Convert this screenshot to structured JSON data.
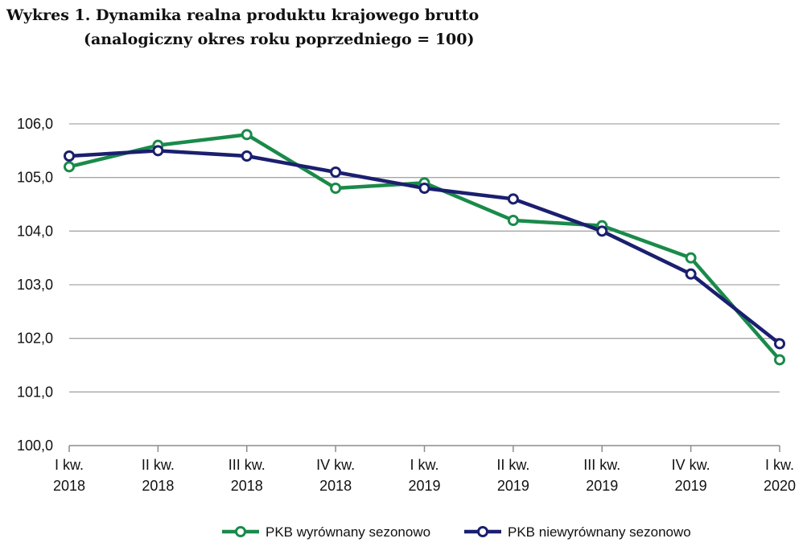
{
  "title": {
    "line1": "Wykres 1. Dynamika realna produktu krajowego brutto",
    "line2": "(analogiczny okres roku poprzedniego = 100)"
  },
  "chart_data": {
    "type": "line",
    "categories": [
      [
        "I kw.",
        "2018"
      ],
      [
        "II kw.",
        "2018"
      ],
      [
        "III kw.",
        "2018"
      ],
      [
        "IV kw.",
        "2018"
      ],
      [
        "I kw.",
        "2019"
      ],
      [
        "II kw.",
        "2019"
      ],
      [
        "III kw.",
        "2019"
      ],
      [
        "IV kw.",
        "2019"
      ],
      [
        "I kw.",
        "2020"
      ]
    ],
    "series": [
      {
        "name": "PKB wyrównany sezonowo",
        "color": "#1a8a4a",
        "values": [
          105.2,
          105.6,
          105.8,
          104.8,
          104.9,
          104.2,
          104.1,
          103.5,
          101.6
        ]
      },
      {
        "name": "PKB niewyrównany sezonowo",
        "color": "#1b1f6e",
        "values": [
          105.4,
          105.5,
          105.4,
          105.1,
          104.8,
          104.6,
          104.0,
          103.2,
          101.9
        ]
      }
    ],
    "ylim": [
      100.0,
      106.0
    ],
    "yticks": [
      "100,0",
      "101,0",
      "102,0",
      "103,0",
      "104,0",
      "105,0",
      "106,0"
    ],
    "grid": true,
    "legend_position": "bottom"
  }
}
